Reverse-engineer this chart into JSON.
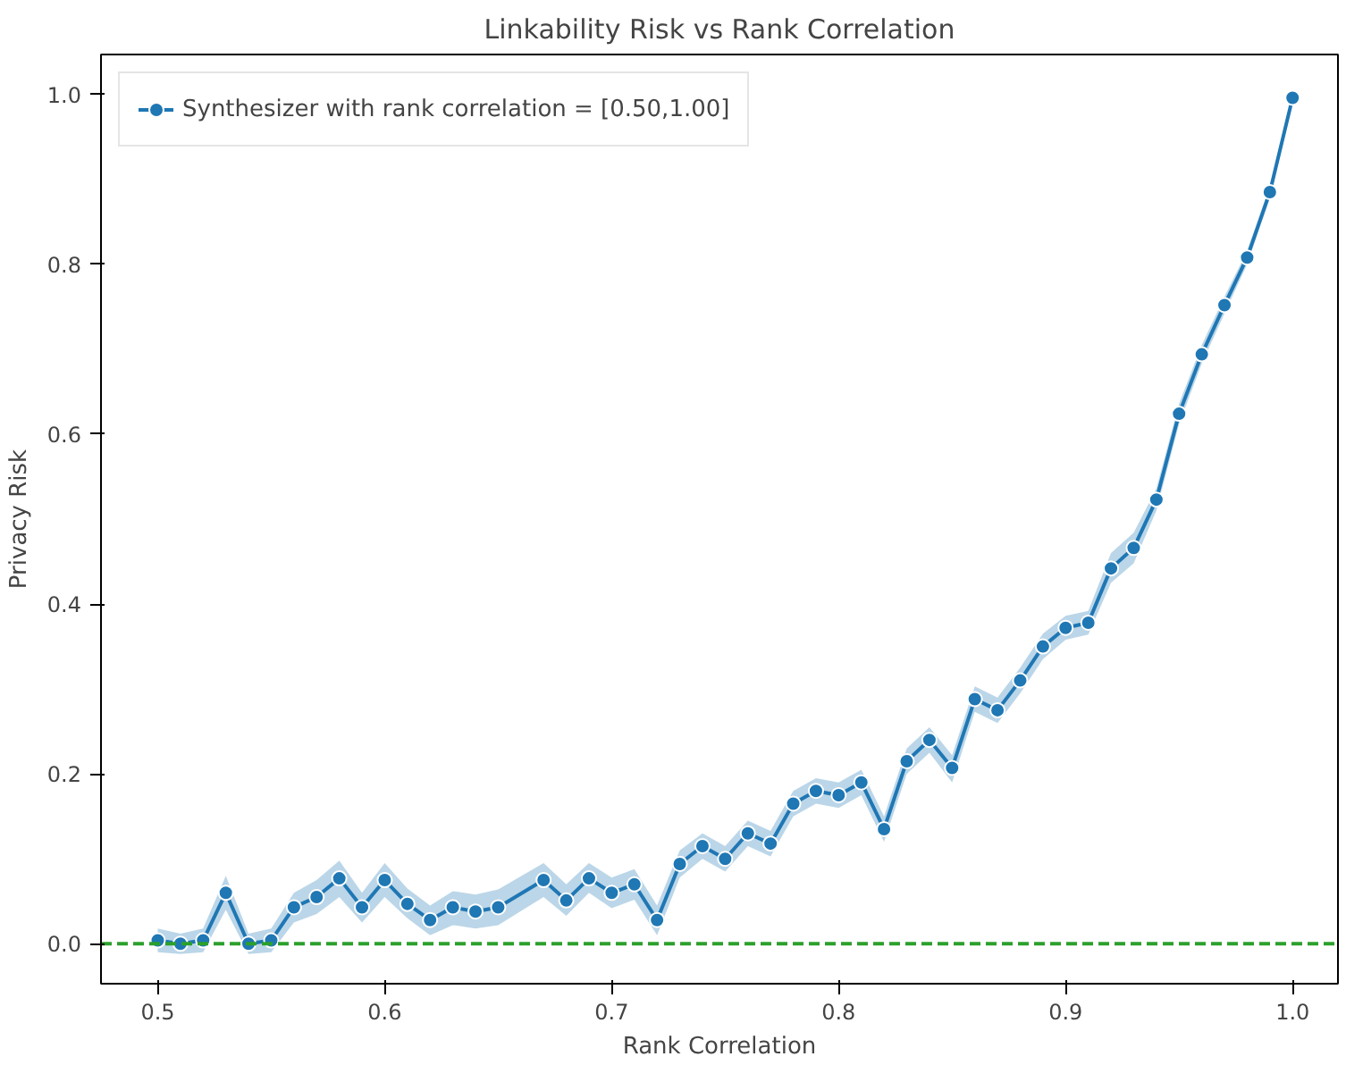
{
  "chart_data": {
    "type": "line",
    "title": "Linkability Risk vs Rank Correlation",
    "xlabel": "Rank Correlation",
    "ylabel": "Privacy Risk",
    "xlim": [
      0.475,
      1.02
    ],
    "ylim": [
      -0.047,
      1.047
    ],
    "xticks": [
      0.5,
      0.6,
      0.7,
      0.8,
      0.9,
      {
        "value": 1,
        "label": "1.0"
      }
    ],
    "yticks": [
      {
        "value": 0,
        "label": "0.0"
      },
      0.2,
      0.4,
      0.6,
      0.8,
      {
        "value": 1,
        "label": "1.0"
      }
    ],
    "grid": false,
    "legend": "top left",
    "marker": "circle",
    "series": [
      {
        "name": "Synthesizer with rank correlation = [0.50,1.00]",
        "color": "#1f77b4",
        "line_style": "solid",
        "x": [
          0.5,
          0.51,
          0.52,
          0.53,
          0.54,
          0.55,
          0.56,
          0.57,
          0.58,
          0.59,
          0.6,
          0.61,
          0.62,
          0.63,
          0.64,
          0.65,
          0.67,
          0.68,
          0.69,
          0.7,
          0.71,
          0.72,
          0.73,
          0.74,
          0.75,
          0.76,
          0.77,
          0.78,
          0.79,
          0.8,
          0.81,
          0.82,
          0.83,
          0.84,
          0.85,
          0.86,
          0.87,
          0.88,
          0.89,
          0.9,
          0.91,
          0.92,
          0.93,
          0.94,
          0.95,
          0.96,
          0.97,
          0.98,
          0.99,
          1.0
        ],
        "values": [
          0.004,
          0.0,
          0.004,
          0.06,
          0.0,
          0.004,
          0.043,
          0.055,
          0.077,
          0.043,
          0.075,
          0.047,
          0.028,
          0.043,
          0.038,
          0.043,
          0.075,
          0.051,
          0.077,
          0.06,
          0.07,
          0.028,
          0.094,
          0.115,
          0.1,
          0.13,
          0.118,
          0.165,
          0.18,
          0.175,
          0.19,
          0.135,
          0.215,
          0.24,
          0.207,
          0.288,
          0.275,
          0.31,
          0.35,
          0.372,
          0.378,
          0.442,
          0.466,
          0.523,
          0.624,
          0.694,
          0.752,
          0.808,
          0.885,
          0.996
        ],
        "lower": [
          -0.01,
          -0.012,
          -0.01,
          0.04,
          -0.012,
          -0.01,
          0.025,
          0.035,
          0.055,
          0.025,
          0.055,
          0.03,
          0.01,
          0.022,
          0.018,
          0.022,
          0.055,
          0.033,
          0.06,
          0.042,
          0.052,
          0.01,
          0.078,
          0.1,
          0.085,
          0.115,
          0.103,
          0.15,
          0.165,
          0.16,
          0.175,
          0.12,
          0.2,
          0.225,
          0.19,
          0.273,
          0.26,
          0.295,
          0.335,
          0.358,
          0.364,
          0.425,
          0.448,
          0.51,
          0.612,
          0.683,
          0.742,
          0.8,
          0.878,
          0.992
        ],
        "upper": [
          0.018,
          0.012,
          0.018,
          0.08,
          0.012,
          0.018,
          0.06,
          0.075,
          0.098,
          0.06,
          0.095,
          0.065,
          0.045,
          0.062,
          0.058,
          0.064,
          0.095,
          0.07,
          0.095,
          0.078,
          0.088,
          0.045,
          0.11,
          0.13,
          0.115,
          0.145,
          0.133,
          0.18,
          0.195,
          0.19,
          0.205,
          0.15,
          0.23,
          0.255,
          0.222,
          0.303,
          0.29,
          0.325,
          0.365,
          0.386,
          0.392,
          0.46,
          0.484,
          0.536,
          0.636,
          0.705,
          0.762,
          0.816,
          0.892,
          1.0
        ]
      },
      {
        "color": "#2ca02c",
        "line_style": "dashed",
        "marker": "none",
        "x": [
          0.475,
          1.02
        ],
        "values": [
          0.0,
          0.0
        ]
      }
    ]
  }
}
